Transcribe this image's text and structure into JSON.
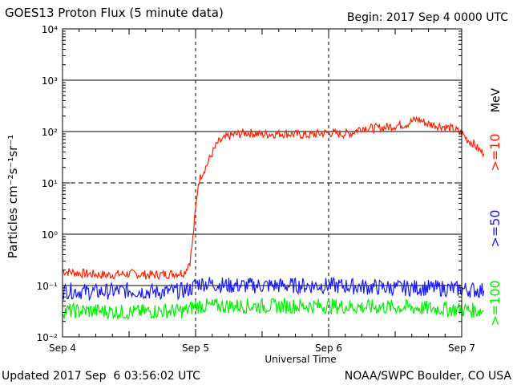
{
  "header": {
    "title": "GOES13 Proton Flux (5 minute data)",
    "begin": "Begin: 2017 Sep 4 0000 UTC"
  },
  "footer": {
    "updated": "Updated 2017 Sep  6 03:56:02 UTC",
    "credit": "NOAA/SWPC Boulder, CO USA"
  },
  "chart_data": {
    "type": "line",
    "title": "GOES13 Proton Flux (5 minute data)",
    "xlabel": "Universal Time",
    "ylabel": "Particles cm⁻²s⁻¹sr⁻¹",
    "y_scale": "log",
    "ylim": [
      0.01,
      10000
    ],
    "xlim": [
      "2017-09-04 00:00",
      "2017-09-07 00:00"
    ],
    "x_ticks": [
      "Sep 4",
      "Sep 5",
      "Sep 6",
      "Sep 7"
    ],
    "y_ticks": [
      "10⁻²",
      "10⁻¹",
      "10⁰",
      "10¹",
      "10²",
      "10³",
      "10⁴"
    ],
    "legend": {
      "unit": "MeV",
      "entries": [
        {
          "label": ">=10",
          "color": "#ff2200"
        },
        {
          "label": ">=50",
          "color": "#1a1aff"
        },
        {
          "label": ">=100",
          "color": "#00ee00"
        }
      ],
      "placement": "right, vertical"
    },
    "grid": "solid horizontal at decades 10^-1,10^0,10^2,10^3; dashed at 10^1; dashed vertical at day boundaries",
    "series": [
      {
        "name": ">=10",
        "color": "#ff2200",
        "x_hours": [
          0,
          4,
          8,
          12,
          16,
          20,
          22,
          23,
          23.5,
          24,
          24.5,
          25,
          26,
          27,
          28,
          30,
          33,
          36,
          40,
          44,
          48,
          50,
          52,
          54,
          56,
          58,
          60,
          62,
          64,
          66,
          68,
          70,
          72,
          73,
          74,
          75,
          76
        ],
        "y": [
          0.19,
          0.17,
          0.16,
          0.17,
          0.16,
          0.17,
          0.18,
          0.3,
          0.8,
          3,
          10,
          14,
          22,
          38,
          60,
          82,
          95,
          88,
          92,
          85,
          95,
          90,
          92,
          120,
          115,
          120,
          130,
          140,
          175,
          140,
          130,
          115,
          95,
          70,
          60,
          45,
          37
        ]
      },
      {
        "name": ">=50",
        "color": "#1a1aff",
        "x_hours": [
          0,
          6,
          12,
          18,
          22,
          23.5,
          24,
          26,
          30,
          36,
          42,
          48,
          54,
          60,
          66,
          72,
          76
        ],
        "y": [
          0.08,
          0.075,
          0.08,
          0.075,
          0.08,
          0.09,
          0.11,
          0.11,
          0.1,
          0.1,
          0.1,
          0.1,
          0.095,
          0.09,
          0.09,
          0.085,
          0.08
        ]
      },
      {
        "name": ">=100",
        "color": "#00ee00",
        "x_hours": [
          0,
          6,
          12,
          18,
          22,
          24,
          30,
          36,
          42,
          48,
          54,
          60,
          66,
          72,
          76
        ],
        "y": [
          0.032,
          0.032,
          0.03,
          0.032,
          0.032,
          0.04,
          0.04,
          0.04,
          0.04,
          0.04,
          0.038,
          0.038,
          0.036,
          0.034,
          0.032
        ]
      }
    ]
  }
}
